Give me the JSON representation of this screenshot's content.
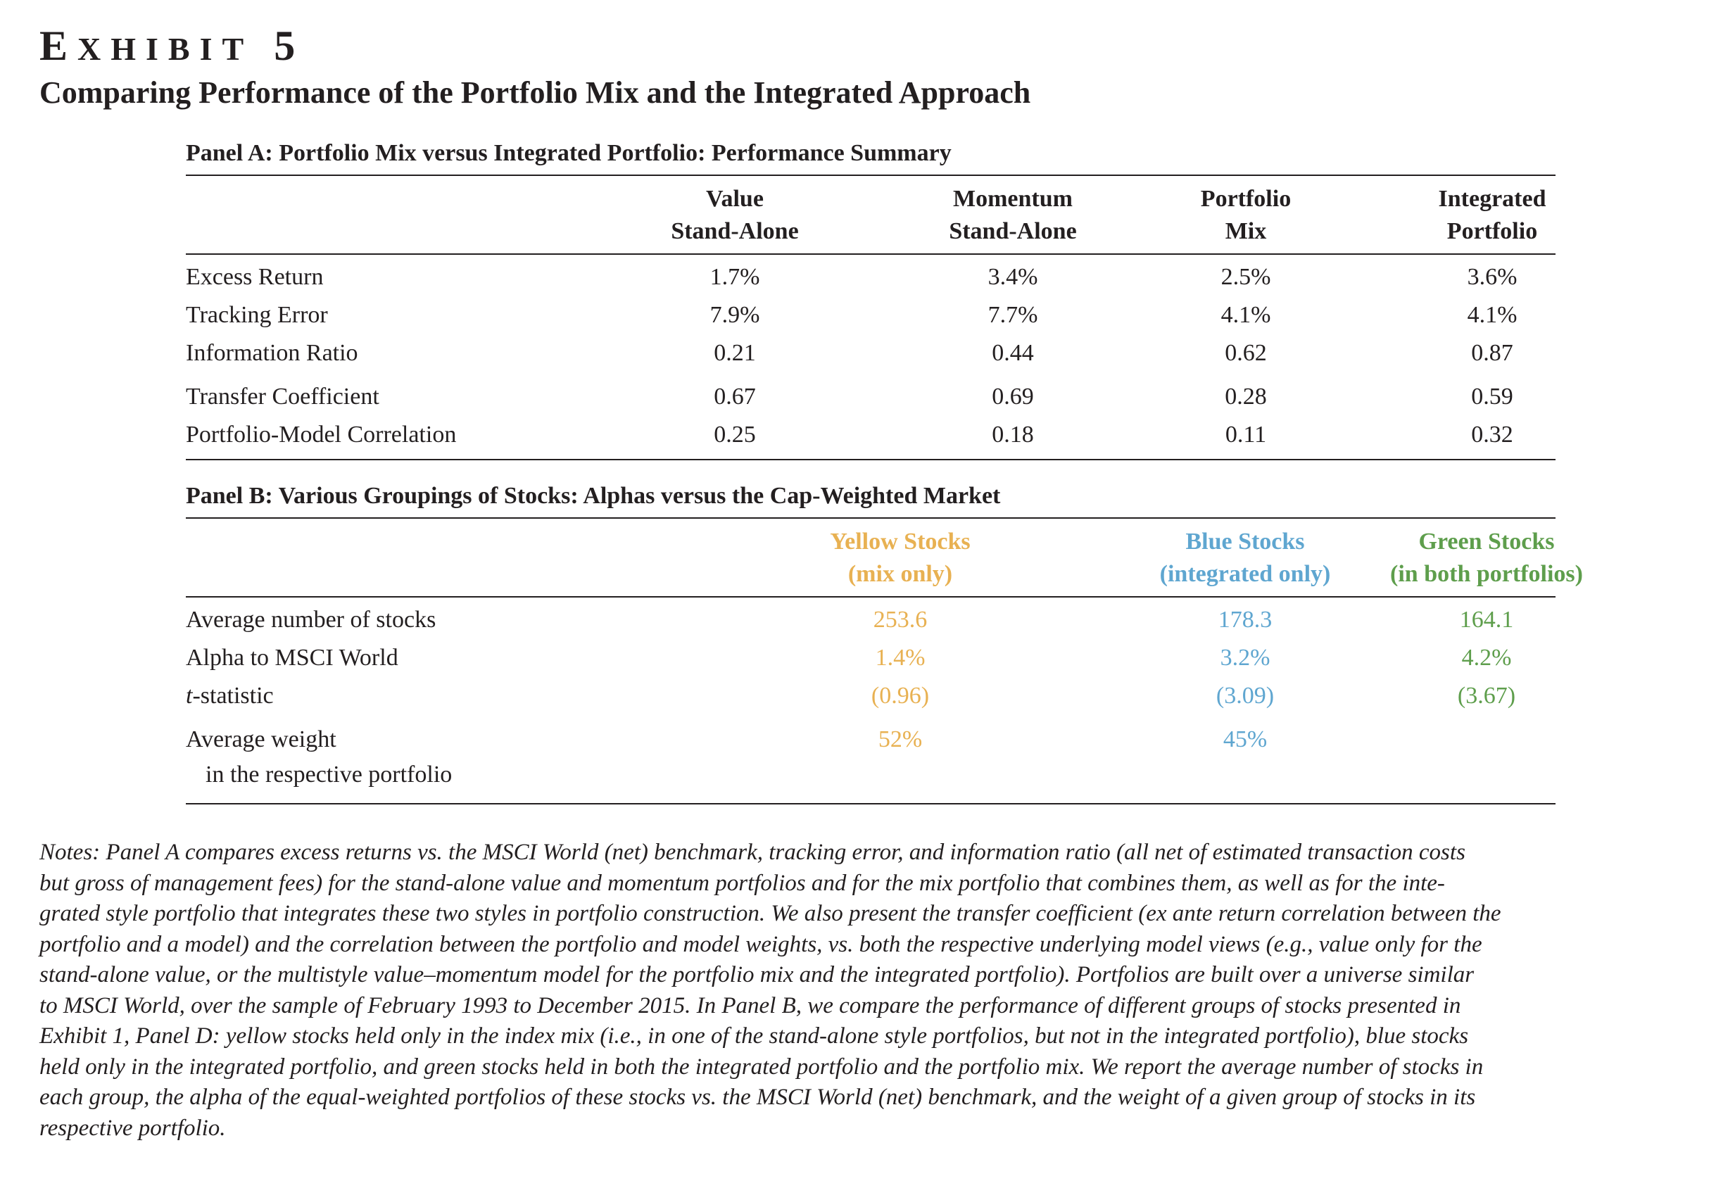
{
  "exhibit": {
    "label_first": "E",
    "label_rest": "XHIBIT",
    "number": "5",
    "title": "Comparing Performance of the Portfolio Mix and the Integrated Approach"
  },
  "panel_a": {
    "title": "Panel A: Portfolio Mix versus Integrated Portfolio: Performance Summary",
    "columns": [
      {
        "line1": "Value",
        "line2": "Stand-Alone"
      },
      {
        "line1": "Momentum",
        "line2": "Stand-Alone"
      },
      {
        "line1": "Portfolio",
        "line2": "Mix"
      },
      {
        "line1": "Integrated",
        "line2": "Portfolio"
      }
    ],
    "rows": [
      {
        "label": "Excess Return",
        "values": [
          "1.7%",
          "3.4%",
          "2.5%",
          "3.6%"
        ]
      },
      {
        "label": "Tracking Error",
        "values": [
          "7.9%",
          "7.7%",
          "4.1%",
          "4.1%"
        ]
      },
      {
        "label": "Information Ratio",
        "values": [
          "0.21",
          "0.44",
          "0.62",
          "0.87"
        ]
      },
      {
        "label": "Transfer Coefficient",
        "values": [
          "0.67",
          "0.69",
          "0.28",
          "0.59"
        ]
      },
      {
        "label": "Portfolio-Model Correlation",
        "values": [
          "0.25",
          "0.18",
          "0.11",
          "0.32"
        ]
      }
    ]
  },
  "panel_b": {
    "title": "Panel B: Various Groupings of Stocks: Alphas versus the Cap-Weighted Market",
    "colors": {
      "yellow": "#e8b152",
      "blue": "#5fa6d0",
      "green": "#5e9e4c"
    },
    "columns": [
      {
        "line1": "Yellow Stocks",
        "line2": "(mix only)"
      },
      {
        "line1": "Blue Stocks",
        "line2": "(integrated only)"
      },
      {
        "line1": "Green Stocks",
        "line2": "(in both portfolios)"
      }
    ],
    "rows": [
      {
        "label": "Average number of stocks",
        "values": [
          "253.6",
          "178.3",
          "164.1"
        ]
      },
      {
        "label": "Alpha to MSCI World",
        "values": [
          "1.4%",
          "3.2%",
          "4.2%"
        ]
      },
      {
        "label_italic": "t",
        "label": "-statistic",
        "values": [
          "(0.96)",
          "(3.09)",
          "(3.67)"
        ]
      },
      {
        "label": "Average weight",
        "label_line2": "in the respective portfolio",
        "values": [
          "52%",
          "45%",
          ""
        ]
      }
    ]
  },
  "notes": [
    "Notes: Panel A compares excess returns vs. the MSCI World (net) benchmark, tracking error, and information ratio (all net of estimated transaction costs",
    "but gross of management fees) for the stand-alone value and momentum portfolios and for the mix portfolio that combines them, as well as for the inte-",
    "grated style portfolio that integrates these two styles in portfolio construction. We also present the transfer coefficient (ex ante return correlation between the",
    "portfolio and a model) and the correlation between the portfolio and model weights, vs. both the respective underlying model views (e.g., value only for the",
    "stand-alone value, or the multistyle value–momentum model for the portfolio mix and the integrated portfolio). Portfolios are built over a universe similar",
    "to MSCI World, over the sample of February 1993 to December 2015. In Panel B, we compare the performance of different groups of stocks presented in",
    "Exhibit 1, Panel D: yellow stocks held only in the index mix (i.e., in one of the stand-alone style portfolios, but not in the integrated portfolio), blue stocks",
    "held only in the integrated portfolio, and green stocks held in both the integrated portfolio and the portfolio mix. We report the average number of stocks in",
    "each group, the alpha of the equal-weighted portfolios of these stocks vs. the MSCI World (net) benchmark, and the weight of a given group of stocks in its",
    "respective portfolio."
  ]
}
